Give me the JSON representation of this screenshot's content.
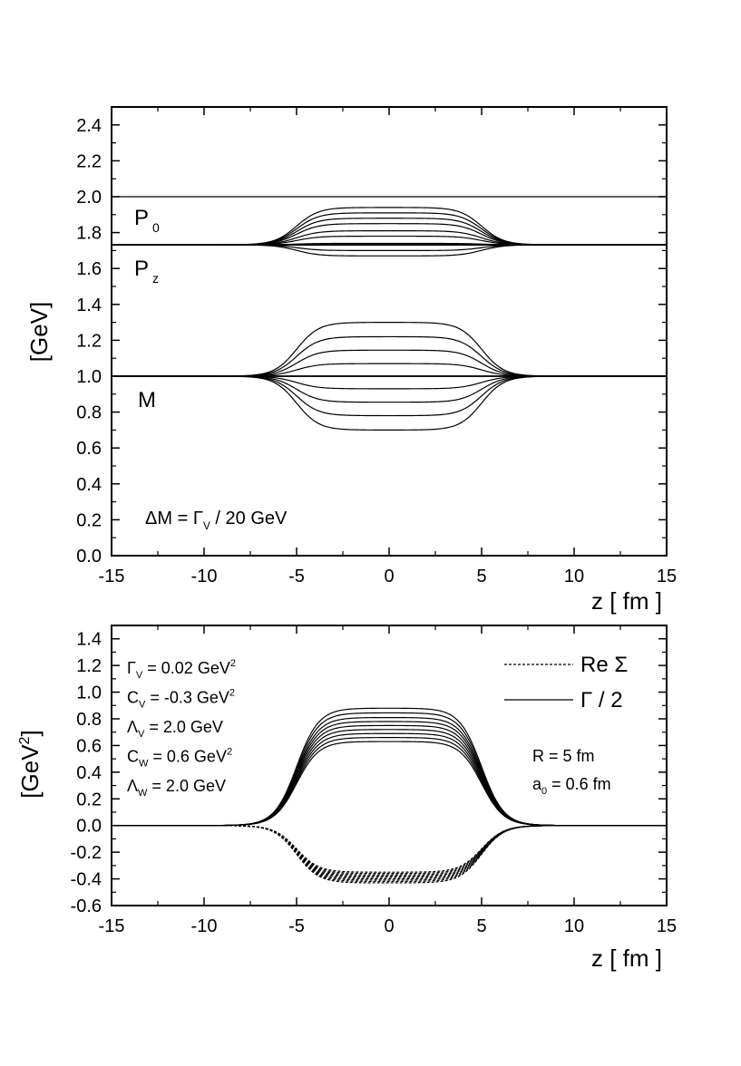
{
  "chart_data": [
    {
      "type": "line",
      "xlabel": "z [ fm ]",
      "ylabel": "[GeV]",
      "xlim": [
        -15,
        15
      ],
      "ylim": [
        0.0,
        2.5
      ],
      "xticks": [
        "-15",
        "-10",
        "-5",
        "0",
        "5",
        "10",
        "15"
      ],
      "yticks": [
        "0.0",
        "0.2",
        "0.4",
        "0.6",
        "0.8",
        "1.0",
        "1.2",
        "1.4",
        "1.6",
        "1.8",
        "2.0",
        "2.2",
        "2.4"
      ],
      "profile": {
        "radius_fm": 5,
        "diffuseness_fm": 0.6
      },
      "series": [
        {
          "name": "P0",
          "values_at_center": [
            2.0
          ]
        },
        {
          "name": "Pz",
          "baseline": 1.732,
          "values_at_center": [
            1.67,
            1.7,
            1.74,
            1.78,
            1.81,
            1.85,
            1.88,
            1.91,
            1.94
          ]
        },
        {
          "name": "M",
          "baseline": 1.0,
          "values_at_center": [
            0.7,
            0.78,
            0.855,
            0.93,
            1.0,
            1.07,
            1.145,
            1.22,
            1.3
          ]
        }
      ],
      "labels": {
        "p0": "P",
        "p0_sub": "0",
        "pz": "P",
        "pz_sub": "z",
        "m": "M"
      },
      "annotation": {
        "pre": "ΔM = Γ",
        "sub": "V",
        "post": " / 20 GeV"
      },
      "grid": false,
      "legend": "none"
    },
    {
      "type": "line",
      "xlabel": "z [ fm ]",
      "ylabel": "[GeV",
      "ylabel_sup": "2",
      "ylabel_close": "]",
      "xlim": [
        -15,
        15
      ],
      "ylim": [
        -0.6,
        1.5
      ],
      "xticks": [
        "-15",
        "-10",
        "-5",
        "0",
        "5",
        "10",
        "15"
      ],
      "yticks": [
        "-0.6",
        "-0.4",
        "-0.2",
        "0.0",
        "0.2",
        "0.4",
        "0.6",
        "0.8",
        "1.0",
        "1.2",
        "1.4"
      ],
      "profile": {
        "radius_fm": 5,
        "diffuseness_fm": 0.6
      },
      "series": [
        {
          "name": "Re Σ",
          "style": "dashed",
          "values_at_center": [
            -0.43,
            -0.42,
            -0.41,
            -0.4,
            -0.39,
            -0.38,
            -0.37,
            -0.36,
            -0.35
          ]
        },
        {
          "name": "Γ / 2",
          "style": "solid",
          "values_at_center": [
            0.63,
            0.66,
            0.69,
            0.72,
            0.75,
            0.78,
            0.81,
            0.845,
            0.88
          ]
        }
      ],
      "legend": {
        "position": "top-right",
        "dashed_label": "Re Σ",
        "solid_label": "Γ / 2"
      },
      "params_left": [
        {
          "sym": "Γ",
          "sub": "V",
          "rest": "  = 0.02 GeV",
          "sup": "2"
        },
        {
          "sym": "C",
          "sub": "V",
          "rest": "  = -0.3 GeV",
          "sup": "2"
        },
        {
          "sym": "Λ",
          "sub": "V",
          "rest": "  =  2.0 GeV",
          "sup": ""
        },
        {
          "sym": "C",
          "sub": "W",
          "rest": "  =  0.6 GeV",
          "sup": "2"
        },
        {
          "sym": "Λ",
          "sub": "W",
          "rest": "  =  2.0 GeV",
          "sup": ""
        }
      ],
      "params_right": [
        {
          "sym": "R",
          "sub": "",
          "rest": " = 5 fm"
        },
        {
          "sym": "a",
          "sub": "0",
          "rest": " = 0.6 fm"
        }
      ],
      "grid": false
    }
  ]
}
